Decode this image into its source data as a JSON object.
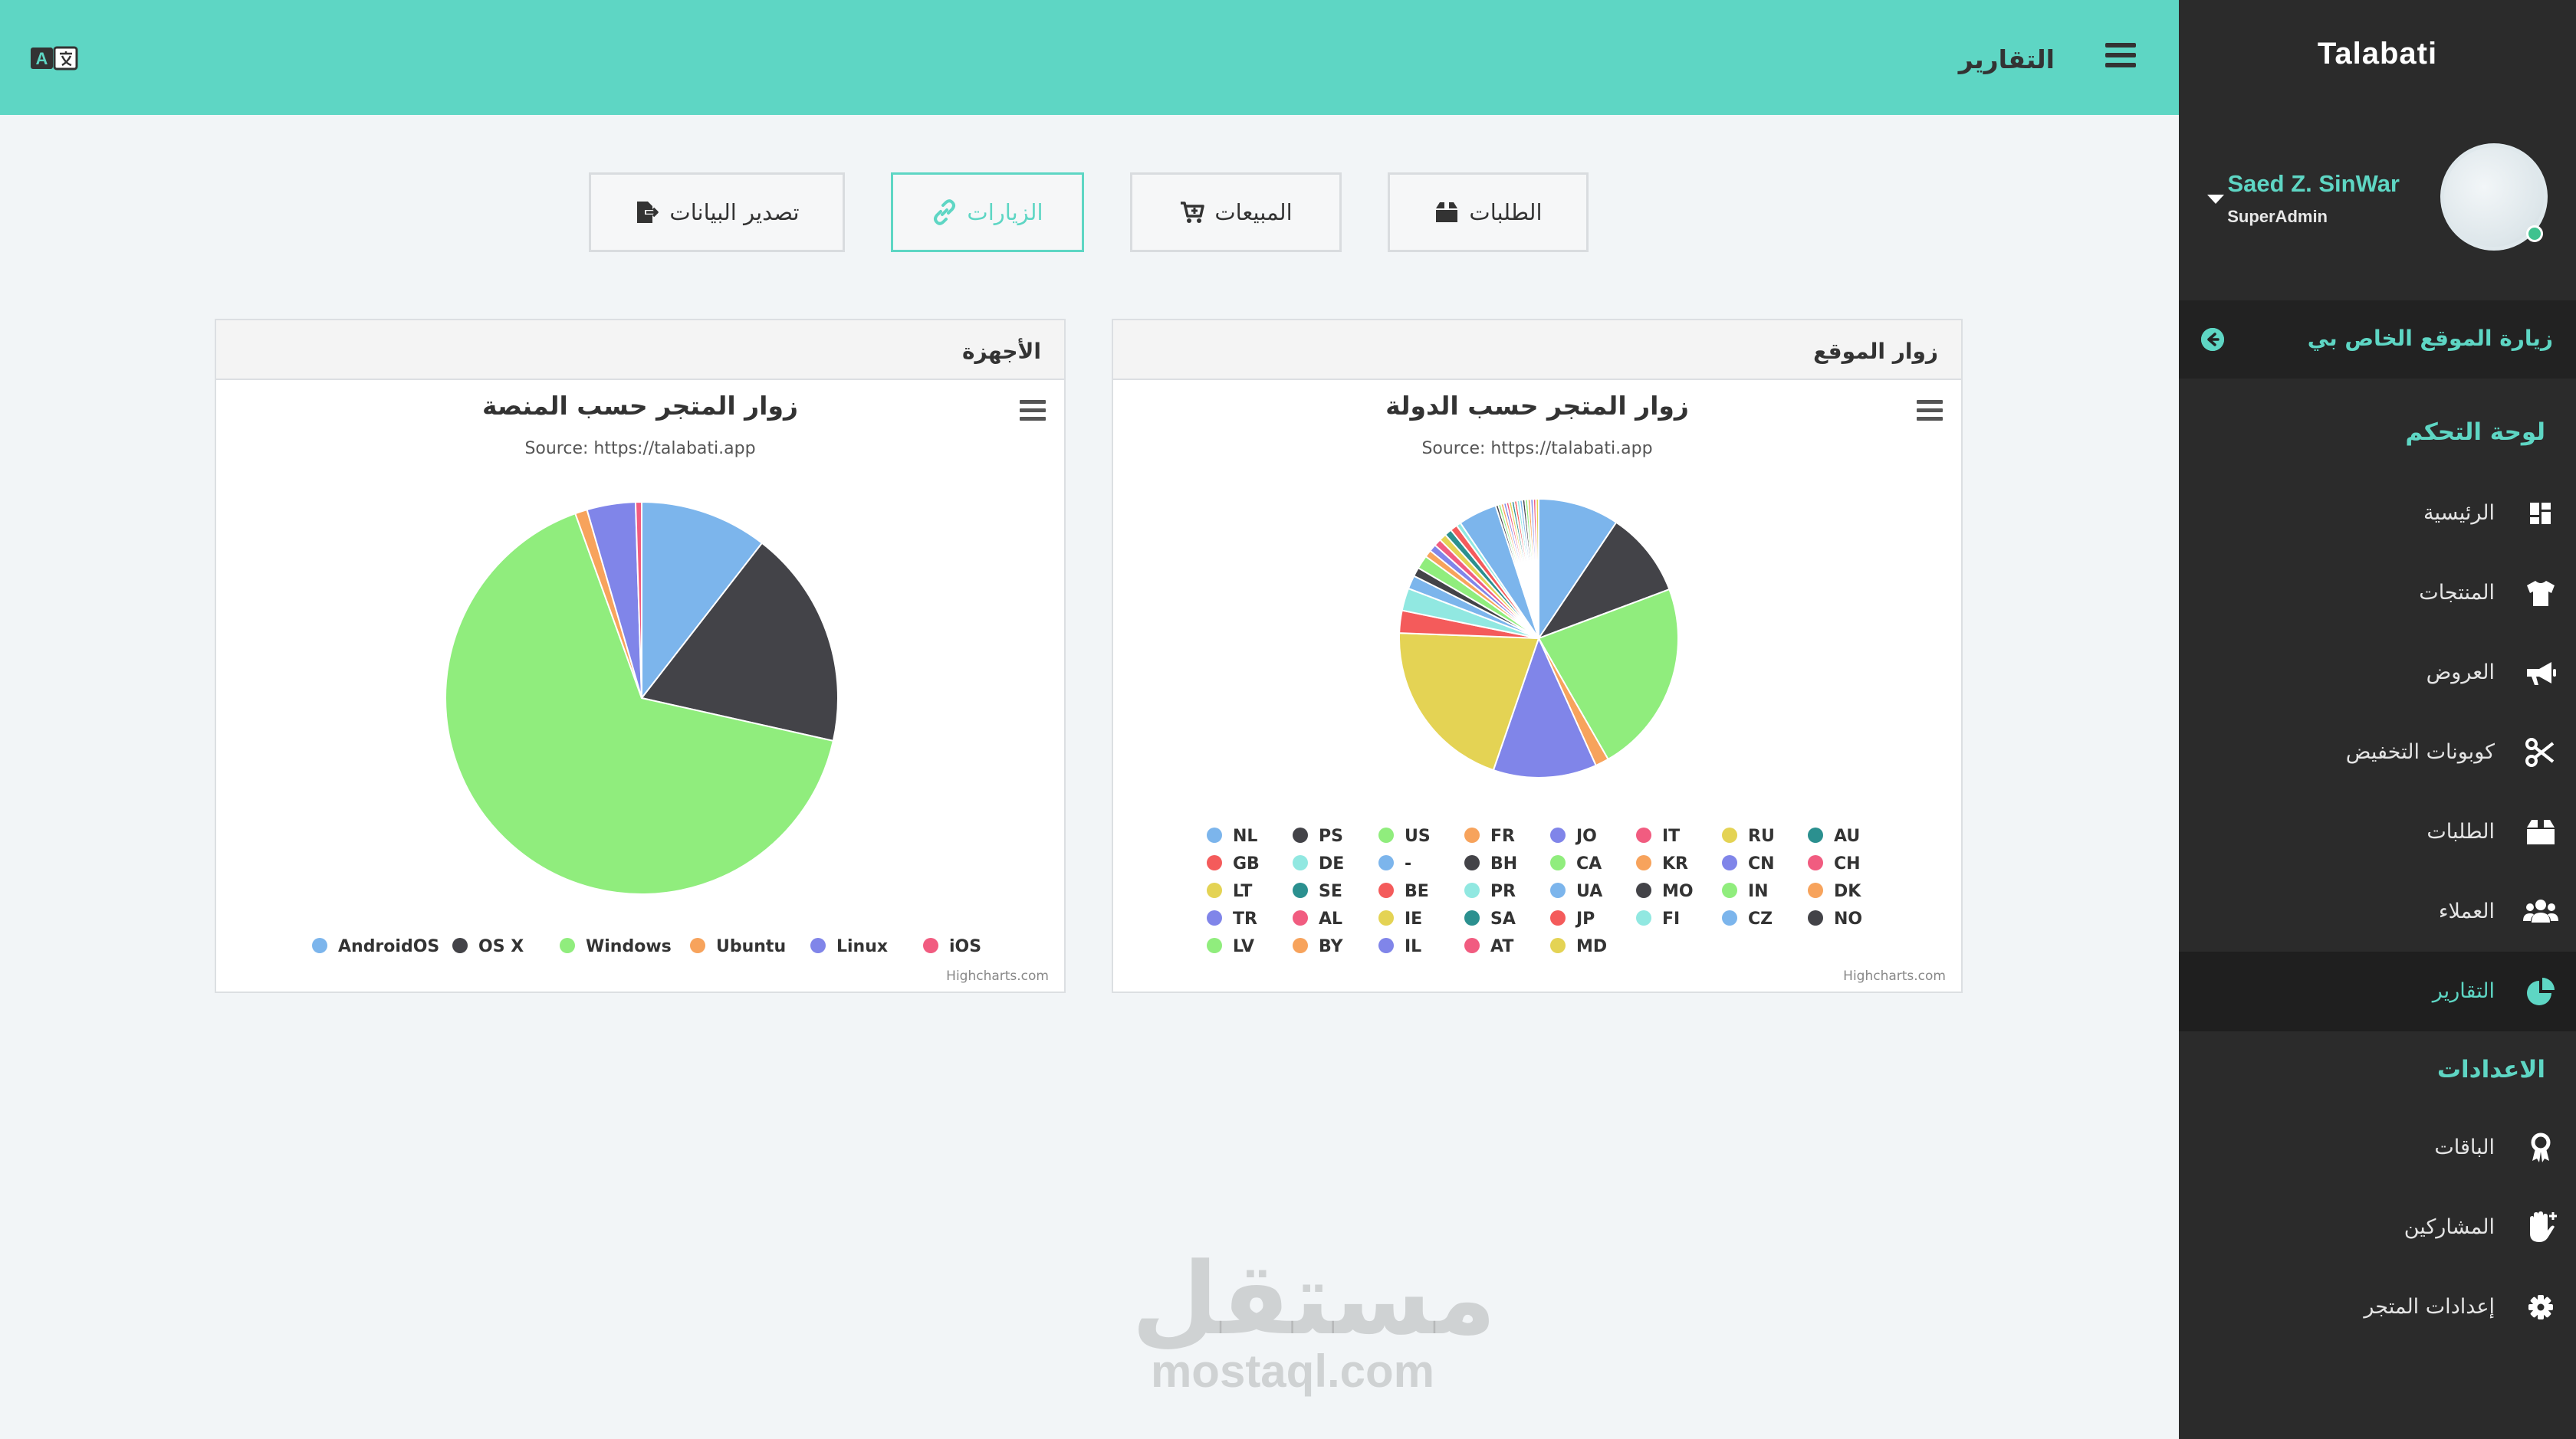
{
  "header": {
    "title": "التقارير",
    "lang_icon": "translate-icon",
    "menu_icon": "hamburger-icon"
  },
  "sidebar": {
    "brand": "Talabati",
    "user": {
      "name": "Saed Z. SinWar",
      "role": "SuperAdmin",
      "status": "online"
    },
    "visit_site": "زيارة الموقع الخاص بي",
    "sections": {
      "dashboard": "لوحة التحكم",
      "settings": "الاعدادات"
    },
    "items": [
      {
        "label": "الرئيسية",
        "icon": "dashboard-icon"
      },
      {
        "label": "المنتجات",
        "icon": "shirt-icon"
      },
      {
        "label": "العروض",
        "icon": "megaphone-icon"
      },
      {
        "label": "كوبونات التخفيض",
        "icon": "scissors-icon"
      },
      {
        "label": "الطلبات",
        "icon": "box-icon"
      },
      {
        "label": "العملاء",
        "icon": "users-icon"
      },
      {
        "label": "التقارير",
        "icon": "pie-chart-icon",
        "active": true
      },
      {
        "label": "الباقات",
        "icon": "award-icon"
      },
      {
        "label": "المشاركين",
        "icon": "hand-icon"
      },
      {
        "label": "إعدادات المتجر",
        "icon": "gear-icon"
      }
    ]
  },
  "tabs": [
    {
      "label": "الطلبات",
      "icon": "box-icon"
    },
    {
      "label": "المبيعات",
      "icon": "cart-icon"
    },
    {
      "label": "الزيارات",
      "icon": "link-icon",
      "active": true
    },
    {
      "label": "تصدير البيانات",
      "icon": "export-icon"
    }
  ],
  "panels": {
    "country": {
      "heading": "زوار الموقع",
      "chart_title": "زوار المتجر حسب الدولة",
      "source": "Source: https://talabati.app",
      "credit": "Highcharts.com"
    },
    "devices": {
      "heading": "الأجهزة",
      "chart_title": "زوار المتجر حسب المنصة",
      "source": "Source: https://talabati.app",
      "credit": "Highcharts.com"
    }
  },
  "watermark": {
    "ar": "مستقل",
    "en": "mostaql.com"
  },
  "chart_data": [
    {
      "type": "pie",
      "title": "زوار المتجر حسب الدولة",
      "subtitle": "Source: https://talabati.app",
      "legend_position": "bottom",
      "categories": [
        "NL",
        "PS",
        "US",
        "FR",
        "JO",
        "IT",
        "RU",
        "AU",
        "GB",
        "DE",
        "-",
        "BH",
        "CA",
        "KR",
        "CN",
        "CH",
        "LT",
        "SE",
        "BE",
        "PR",
        "UA",
        "MO",
        "IN",
        "DK",
        "TR",
        "AL",
        "IE",
        "SA",
        "JP",
        "FI",
        "CZ",
        "NO",
        "LV",
        "BY",
        "IL",
        "AT",
        "MD"
      ],
      "values": [
        9.0,
        9.5,
        21.5,
        1.5,
        11.5,
        0,
        19.5,
        0,
        2.5,
        2.5,
        1.5,
        1.0,
        1.5,
        0.8,
        0.8,
        0.8,
        0.8,
        0.8,
        0.8,
        0.5,
        4.3,
        0.3,
        0.3,
        0.3,
        0.3,
        0.3,
        0.3,
        0.3,
        0.3,
        0.3,
        0.3,
        0.3,
        0.3,
        0.3,
        0.3,
        0.3,
        0.3
      ],
      "colors": [
        "#7cb5ec",
        "#434348",
        "#90ed7d",
        "#f7a35c",
        "#8085e9",
        "#f15c80",
        "#e4d354",
        "#2b908f",
        "#f45b5b",
        "#91e8e1",
        "#7cb5ec",
        "#434348",
        "#90ed7d",
        "#f7a35c",
        "#8085e9",
        "#f15c80",
        "#e4d354",
        "#2b908f",
        "#f45b5b",
        "#91e8e1",
        "#7cb5ec",
        "#434348",
        "#90ed7d",
        "#f7a35c",
        "#8085e9",
        "#f15c80",
        "#e4d354",
        "#2b908f",
        "#f45b5b",
        "#91e8e1",
        "#7cb5ec",
        "#434348",
        "#90ed7d",
        "#f7a35c",
        "#8085e9",
        "#f15c80",
        "#e4d354"
      ]
    },
    {
      "type": "pie",
      "title": "زوار المتجر حسب المنصة",
      "subtitle": "Source: https://talabati.app",
      "legend_position": "bottom",
      "categories": [
        "AndroidOS",
        "OS X",
        "Windows",
        "Ubuntu",
        "Linux",
        "iOS"
      ],
      "values": [
        10.5,
        18.0,
        66.0,
        1.0,
        4.0,
        0.5
      ],
      "colors": [
        "#7cb5ec",
        "#434348",
        "#90ed7d",
        "#f7a35c",
        "#8085e9",
        "#f15c80"
      ]
    }
  ]
}
